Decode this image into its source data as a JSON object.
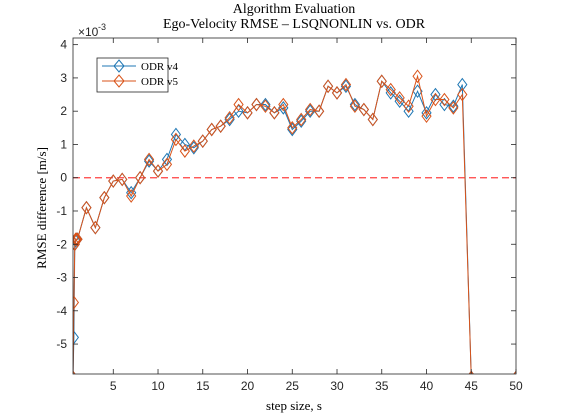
{
  "chart_data": {
    "type": "line",
    "title": "Algorithm Evaluation",
    "subtitle": "Ego-Velocity RMSE – LSQNONLIN vs. ODR",
    "xlabel": "step size, s",
    "ylabel": "RMSE difference  [m/s]",
    "y_exponent_label": "×10",
    "y_exponent_value": "-3",
    "xlim": [
      0.5,
      50
    ],
    "ylim": [
      -5.9,
      4.2
    ],
    "xticks": [
      5,
      10,
      15,
      20,
      25,
      30,
      35,
      40,
      45,
      50
    ],
    "yticks": [
      -5,
      -4,
      -3,
      -2,
      -1,
      0,
      1,
      2,
      3,
      4
    ],
    "grid": false,
    "legend_position": "top-left",
    "reference_line": {
      "y": 0,
      "style": "dashed",
      "color": "#ff4040"
    },
    "series": [
      {
        "name": "ODR v4",
        "color": "#1f77b4",
        "marker": "diamond",
        "x": [
          0.5,
          0.6,
          0.7,
          0.8,
          0.9,
          1,
          2,
          3,
          4,
          5,
          6,
          7,
          8,
          9,
          10,
          11,
          12,
          13,
          14,
          15,
          16,
          17,
          18,
          19,
          20,
          21,
          22,
          23,
          24,
          25,
          26,
          27,
          28,
          29,
          30,
          31,
          32,
          33,
          34,
          35,
          36,
          37,
          38,
          39,
          40,
          41,
          42,
          43,
          44,
          45,
          50
        ],
        "y": [
          -6.0,
          -4.8,
          -2.0,
          -1.9,
          -1.85,
          -1.85,
          -0.9,
          -1.5,
          -0.6,
          -0.1,
          -0.05,
          -0.45,
          0.0,
          0.5,
          0.2,
          0.55,
          1.3,
          1.0,
          0.9,
          1.1,
          1.45,
          1.55,
          1.75,
          2.0,
          1.95,
          2.2,
          2.2,
          1.95,
          2.1,
          1.45,
          1.7,
          2.0,
          2.0,
          2.75,
          2.55,
          2.75,
          2.2,
          2.05,
          1.75,
          2.9,
          2.55,
          2.3,
          2.0,
          2.6,
          1.95,
          2.5,
          2.2,
          2.15,
          2.8,
          -6.0,
          -6.0
        ]
      },
      {
        "name": "ODR v5",
        "color": "#d95319",
        "marker": "diamond",
        "x": [
          0.5,
          0.6,
          0.7,
          0.8,
          0.9,
          1,
          2,
          3,
          4,
          5,
          6,
          7,
          8,
          9,
          10,
          11,
          12,
          13,
          14,
          15,
          16,
          17,
          18,
          19,
          20,
          21,
          22,
          23,
          24,
          25,
          26,
          27,
          28,
          29,
          30,
          31,
          32,
          33,
          34,
          35,
          36,
          37,
          38,
          39,
          40,
          41,
          42,
          43,
          44,
          45,
          50
        ],
        "y": [
          -6.0,
          -3.75,
          -2.0,
          -1.85,
          -1.85,
          -1.85,
          -0.9,
          -1.5,
          -0.6,
          -0.1,
          -0.05,
          -0.55,
          0.0,
          0.55,
          0.2,
          0.4,
          1.15,
          0.8,
          0.95,
          1.1,
          1.45,
          1.55,
          1.8,
          2.2,
          1.95,
          2.2,
          2.15,
          1.95,
          2.2,
          1.5,
          1.75,
          2.05,
          2.0,
          2.75,
          2.55,
          2.8,
          2.15,
          2.05,
          1.75,
          2.9,
          2.65,
          2.4,
          2.15,
          3.05,
          1.85,
          2.35,
          2.35,
          2.1,
          2.5,
          -6.0,
          -6.0
        ]
      }
    ]
  }
}
